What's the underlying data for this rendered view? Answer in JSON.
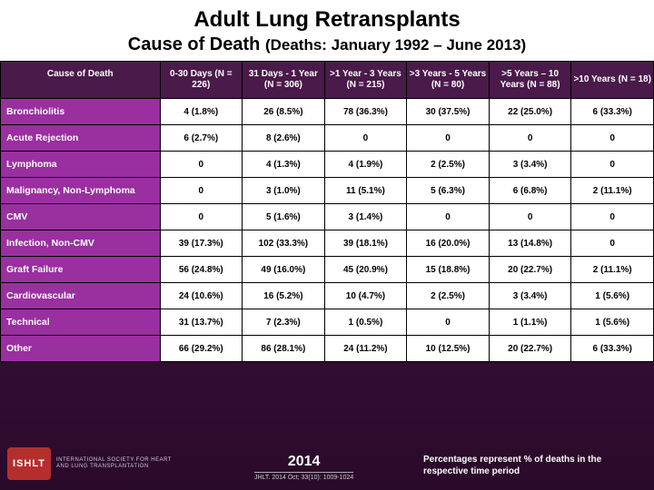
{
  "title": "Adult Lung Retransplants",
  "subtitle_prefix": "Cause of Death ",
  "subtitle_small": "(Deaths: January 1992 – June 2013)",
  "header_row": {
    "label": "Cause of Death",
    "cols": [
      "0-30 Days (N = 226)",
      "31 Days - 1 Year (N = 306)",
      ">1 Year - 3 Years (N = 215)",
      ">3 Years - 5 Years (N = 80)",
      ">5 Years – 10 Years (N = 88)",
      ">10 Years (N = 18)"
    ]
  },
  "rows": [
    {
      "label": "Bronchiolitis",
      "cells": [
        "4 (1.8%)",
        "26 (8.5%)",
        "78 (36.3%)",
        "30 (37.5%)",
        "22 (25.0%)",
        "6 (33.3%)"
      ]
    },
    {
      "label": "Acute Rejection",
      "cells": [
        "6 (2.7%)",
        "8 (2.6%)",
        "0",
        "0",
        "0",
        "0"
      ]
    },
    {
      "label": "Lymphoma",
      "cells": [
        "0",
        "4 (1.3%)",
        "4 (1.9%)",
        "2 (2.5%)",
        "3 (3.4%)",
        "0"
      ]
    },
    {
      "label": "Malignancy, Non-Lymphoma",
      "cells": [
        "0",
        "3 (1.0%)",
        "11 (5.1%)",
        "5 (6.3%)",
        "6 (6.8%)",
        "2 (11.1%)"
      ]
    },
    {
      "label": "CMV",
      "cells": [
        "0",
        "5 (1.6%)",
        "3 (1.4%)",
        "0",
        "0",
        "0"
      ]
    },
    {
      "label": "Infection, Non-CMV",
      "cells": [
        "39 (17.3%)",
        "102 (33.3%)",
        "39 (18.1%)",
        "16 (20.0%)",
        "13 (14.8%)",
        "0"
      ]
    },
    {
      "label": "Graft Failure",
      "cells": [
        "56 (24.8%)",
        "49 (16.0%)",
        "45 (20.9%)",
        "15 (18.8%)",
        "20 (22.7%)",
        "2 (11.1%)"
      ]
    },
    {
      "label": "Cardiovascular",
      "cells": [
        "24 (10.6%)",
        "16 (5.2%)",
        "10 (4.7%)",
        "2 (2.5%)",
        "3 (3.4%)",
        "1 (5.6%)"
      ]
    },
    {
      "label": "Technical",
      "cells": [
        "31 (13.7%)",
        "7 (2.3%)",
        "1 (0.5%)",
        "0",
        "1 (1.1%)",
        "1 (5.6%)"
      ]
    },
    {
      "label": "Other",
      "cells": [
        "66 (29.2%)",
        "86 (28.1%)",
        "24 (11.2%)",
        "10 (12.5%)",
        "20 (22.7%)",
        "6 (33.3%)"
      ]
    }
  ],
  "logo": {
    "badge": "ISHLT",
    "line1": "INTERNATIONAL SOCIETY FOR HEART",
    "line2": "AND LUNG TRANSPLANTATION"
  },
  "year": "2014",
  "citation": "JHLT. 2014 Oct; 33(10): 1009-1024",
  "footnote": "Percentages represent % of deaths in the respective time period"
}
